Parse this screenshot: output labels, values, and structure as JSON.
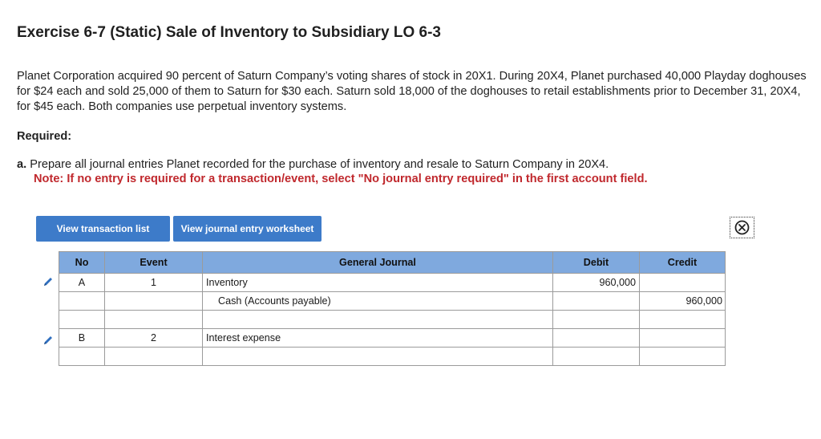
{
  "title": "Exercise 6-7 (Static) Sale of Inventory to Subsidiary LO 6-3",
  "problem_text": "Planet Corporation acquired 90 percent of Saturn Company’s voting shares of stock in 20X1. During 20X4, Planet purchased 40,000 Playday doghouses for $24 each and sold 25,000 of them to Saturn for $30 each. Saturn sold 18,000 of the doghouses to retail establishments prior to December 31, 20X4, for $45 each. Both companies use perpetual inventory systems.",
  "required_label": "Required:",
  "part_a": {
    "letter": "a.",
    "text": "Prepare all journal entries Planet recorded for the purchase of inventory and resale to Saturn Company in 20X4.",
    "note": "Note: If no entry is required for a transaction/event, select \"No journal entry required\" in the first account field."
  },
  "buttons": {
    "view_transaction_list": "View transaction list",
    "view_journal_entry_worksheet": "View journal entry worksheet"
  },
  "icons": {
    "close": "close-circle-icon",
    "edit": "pencil-icon"
  },
  "colors": {
    "button": "#3d7bc9",
    "header": "#7fa9de",
    "note": "#c0282d"
  },
  "table": {
    "headers": {
      "no": "No",
      "event": "Event",
      "journal": "General Journal",
      "debit": "Debit",
      "credit": "Credit"
    },
    "rows": [
      {
        "no": "A",
        "event": "1",
        "account": "Inventory",
        "debit": "960,000",
        "credit": ""
      },
      {
        "no": "",
        "event": "",
        "account": "Cash (Accounts payable)",
        "debit": "",
        "credit": "960,000"
      },
      {
        "no": "",
        "event": "",
        "account": "",
        "debit": "",
        "credit": ""
      },
      {
        "no": "B",
        "event": "2",
        "account": "Interest expense",
        "debit": "",
        "credit": ""
      },
      {
        "no": "",
        "event": "",
        "account": "",
        "debit": "",
        "credit": ""
      }
    ]
  }
}
